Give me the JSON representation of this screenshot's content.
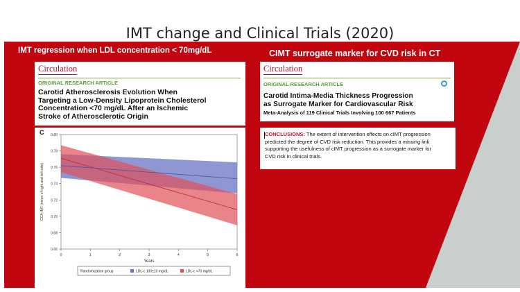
{
  "slide": {
    "title": "IMT change and Clinical Trials (2020)",
    "accent_color": "#c20610",
    "gray_color": "#c8cfcd"
  },
  "left_panel": {
    "heading": "IMT regression when LDL concentration < 70mg/dL",
    "journal": "Circulation",
    "article_type": "ORIGINAL RESEARCH ARTICLE",
    "article_title": [
      "Carotid Atherosclerosis Evolution When",
      "Targeting a Low-Density Lipoprotein Cholesterol",
      "Concentration <70 mg/dL After an Ischemic",
      "Stroke of Atherosclerotic Origin"
    ]
  },
  "right_panel": {
    "heading": "CIMT surrogate marker for CVD risk in CT",
    "journal": "Circulation",
    "article_type": "ORIGINAL RESEARCH ARTICLE",
    "article_title": [
      "Carotid Intima-Media Thickness Progression",
      "as Surrogate Marker for Cardiovascular Risk"
    ],
    "subtitle": "Meta-Analysis of 119 Clinical Trials Involving 100 667 Patients",
    "conclusions_label": "CONCLUSIONS:",
    "conclusions_lines": [
      " The extent of intervention effects on cIMT progression",
      "predicted the degree of CVD risk reduction. This provides a missing link",
      "supporting the usefulness of cIMT progression as a surrogate marker for",
      "CVD risk in clinical trials."
    ]
  },
  "chart_data": {
    "type": "line",
    "panel_label": "C",
    "xlabel": "Years",
    "ylabel": "CCA-IMT (mean of right and left side)",
    "xlim": [
      0,
      6
    ],
    "ylim": [
      0.66,
      0.8
    ],
    "x_ticks": [
      0,
      1,
      2,
      3,
      4,
      5,
      6
    ],
    "y_ticks": [
      0.66,
      0.68,
      0.7,
      0.72,
      0.74,
      0.76,
      0.78,
      0.8
    ],
    "legend_title": "Randomization group",
    "legend_position": "bottom",
    "series": [
      {
        "name": "LDL-c 100±10 mg/dL",
        "color": "#6a74c4",
        "x": [
          0,
          6
        ],
        "y": [
          0.762,
          0.746
        ],
        "ci_low": [
          0.747,
          0.728
        ],
        "ci_high": [
          0.776,
          0.766
        ]
      },
      {
        "name": "LDL-c <70 mg/dL",
        "color": "#e0505a",
        "x": [
          0,
          6
        ],
        "y": [
          0.771,
          0.708
        ],
        "ci_low": [
          0.754,
          0.689
        ],
        "ci_high": [
          0.787,
          0.727
        ]
      }
    ]
  }
}
